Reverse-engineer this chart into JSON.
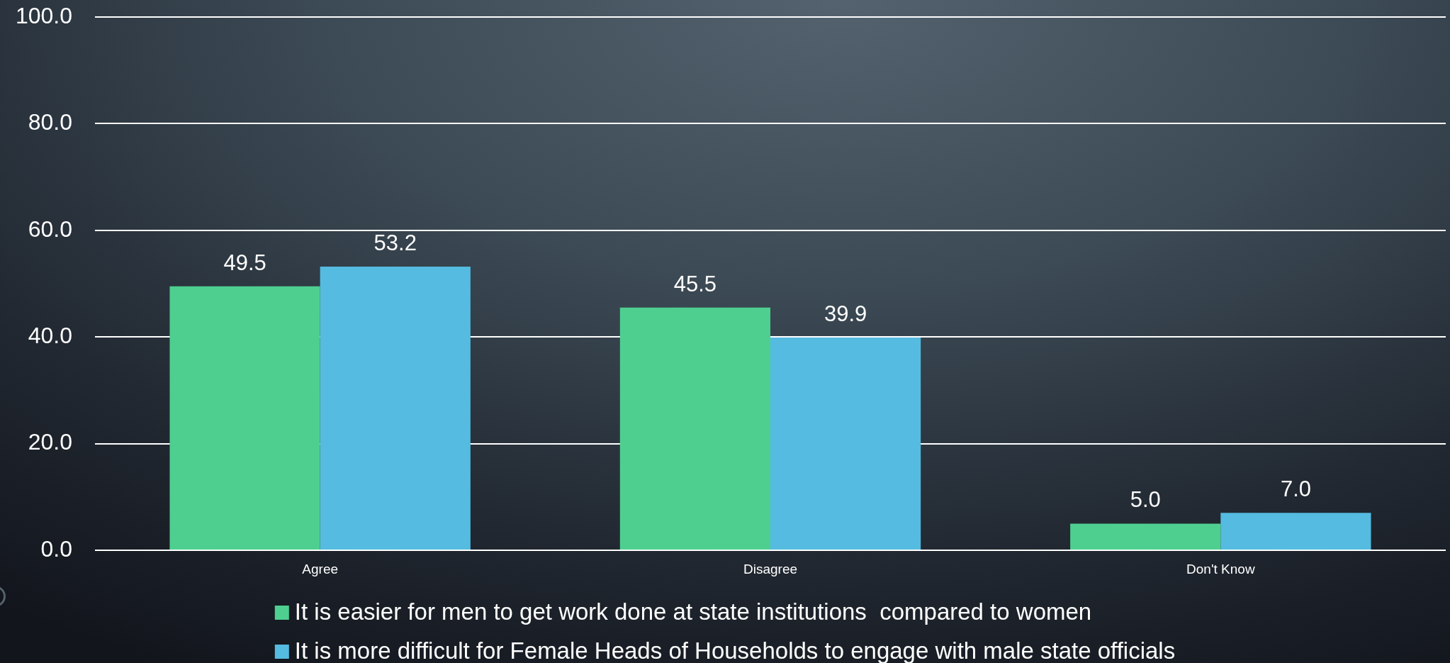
{
  "chart_data": {
    "type": "bar",
    "categories": [
      "Agree",
      "Disagree",
      "Don't Know"
    ],
    "series": [
      {
        "name": "It is easier for men to get work done at state institutions  compared to women",
        "color": "#4ecf90",
        "values": [
          49.5,
          45.5,
          5.0
        ],
        "value_labels": [
          "49.5",
          "45.5",
          "5.0"
        ]
      },
      {
        "name": "It is more difficult for Female Heads of Households to engage with male state officials",
        "color": "#55bbe0",
        "values": [
          53.2,
          39.9,
          7.0
        ],
        "value_labels": [
          "53.2",
          "39.9",
          "7.0"
        ]
      }
    ],
    "ylim": [
      0,
      100
    ],
    "yticks": [
      {
        "value": 0,
        "label": "0.0"
      },
      {
        "value": 20,
        "label": "20.0"
      },
      {
        "value": 40,
        "label": "40.0"
      },
      {
        "value": 60,
        "label": "60.0"
      },
      {
        "value": 80,
        "label": "80.0"
      },
      {
        "value": 100,
        "label": "100.0"
      }
    ],
    "grid": "y",
    "legend": "bottom"
  }
}
